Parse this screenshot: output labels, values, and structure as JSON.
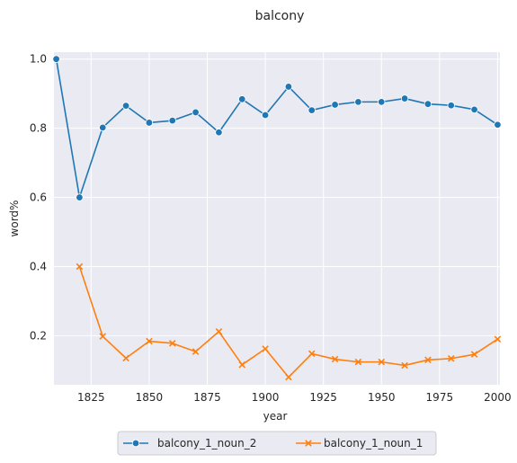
{
  "chart_data": {
    "type": "line",
    "title": "balcony",
    "xlabel": "year",
    "ylabel": "word%",
    "xlim": [
      1809,
      2001
    ],
    "ylim": [
      0.058,
      1.02
    ],
    "xticks": [
      1825,
      1850,
      1875,
      1900,
      1925,
      1950,
      1975,
      2000
    ],
    "yticks": [
      0.2,
      0.4,
      0.6,
      0.8,
      1.0
    ],
    "xtick_labels": [
      "1825",
      "1850",
      "1875",
      "1900",
      "1925",
      "1950",
      "1975",
      "2000"
    ],
    "ytick_labels": [
      "0.2",
      "0.4",
      "0.6",
      "0.8",
      "1.0"
    ],
    "grid": true,
    "legend_position": "bottom-center",
    "series": [
      {
        "name": "balcony_1_noun_2",
        "color": "#1f77b4",
        "marker": "circle",
        "x": [
          1810,
          1820,
          1830,
          1840,
          1850,
          1860,
          1870,
          1880,
          1890,
          1900,
          1910,
          1920,
          1930,
          1940,
          1950,
          1960,
          1970,
          1980,
          1990,
          2000
        ],
        "y": [
          1.0,
          0.6,
          0.802,
          0.865,
          0.816,
          0.822,
          0.846,
          0.788,
          0.884,
          0.838,
          0.92,
          0.852,
          0.868,
          0.876,
          0.876,
          0.886,
          0.87,
          0.866,
          0.854,
          0.81
        ]
      },
      {
        "name": "balcony_1_noun_1",
        "color": "#ff7f0e",
        "marker": "x",
        "x": [
          1820,
          1830,
          1840,
          1850,
          1860,
          1870,
          1880,
          1890,
          1900,
          1910,
          1920,
          1930,
          1940,
          1950,
          1960,
          1970,
          1980,
          1990,
          2000
        ],
        "y": [
          0.4,
          0.198,
          0.135,
          0.184,
          0.178,
          0.154,
          0.212,
          0.116,
          0.162,
          0.08,
          0.148,
          0.132,
          0.124,
          0.124,
          0.114,
          0.13,
          0.134,
          0.146,
          0.19
        ]
      }
    ]
  }
}
